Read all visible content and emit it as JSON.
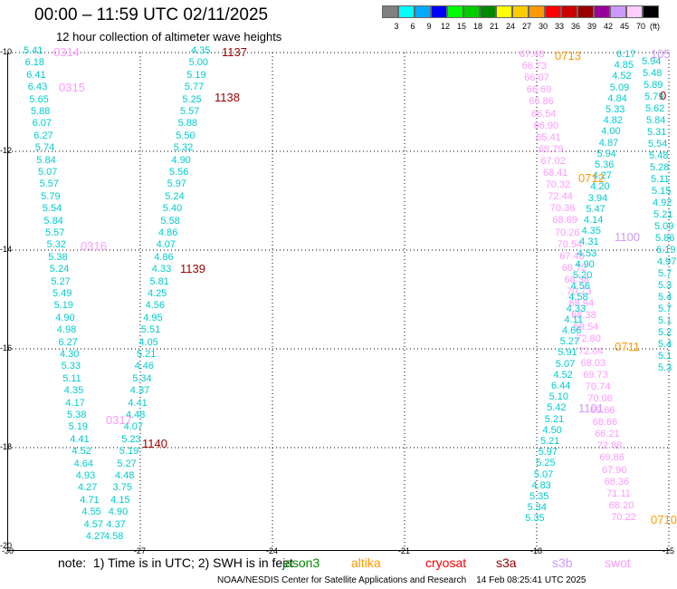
{
  "header": {
    "title": "00:00 – 11:59 UTC 02/11/2025",
    "subtitle": "12 hour collection of altimeter wave heights"
  },
  "legend": {
    "unit": "(ft)",
    "bins": [
      {
        "label": "3",
        "color": "#808080"
      },
      {
        "label": "6",
        "color": "#00ffff"
      },
      {
        "label": "9",
        "color": "#00aaff"
      },
      {
        "label": "12",
        "color": "#0000ff"
      },
      {
        "label": "15",
        "color": "#00ff00"
      },
      {
        "label": "18",
        "color": "#00cc00"
      },
      {
        "label": "21",
        "color": "#008800"
      },
      {
        "label": "24",
        "color": "#ffff00"
      },
      {
        "label": "27",
        "color": "#ffcc00"
      },
      {
        "label": "30",
        "color": "#ff9900"
      },
      {
        "label": "33",
        "color": "#ff0000"
      },
      {
        "label": "36",
        "color": "#cc0000"
      },
      {
        "label": "39",
        "color": "#990000"
      },
      {
        "label": "42",
        "color": "#990099"
      },
      {
        "label": "45",
        "color": "#cc99ff"
      },
      {
        "label": "70",
        "color": "#ffccff"
      },
      {
        "label": "",
        "color": "#000000"
      }
    ]
  },
  "axes": {
    "lon_labels": [
      "-30",
      "-27",
      "-24",
      "-21",
      "-18",
      "-15"
    ],
    "lat_labels": [
      "-10",
      "-12",
      "-14",
      "-16",
      "-18",
      "-20"
    ]
  },
  "note": {
    "text": "note:  1) Time is in UTC; 2) SWH is in feet",
    "satellites": [
      {
        "name": "jason3",
        "color": "#008800"
      },
      {
        "name": "altika",
        "color": "#ff9900"
      },
      {
        "name": "cryosat",
        "color": "#ff0000"
      },
      {
        "name": "s3a",
        "color": "#990000"
      },
      {
        "name": "s3b",
        "color": "#cc99ff"
      },
      {
        "name": "swot",
        "color": "#ff99ff"
      }
    ]
  },
  "footer": {
    "text": "NOAA/NESDIS Center for Satellite Applications and Research    14 Feb 08:25:41 UTC 2025"
  },
  "map": {
    "track_a_values": [
      "5.41",
      "6.18",
      "6.41",
      "6.43",
      "5.65",
      "5.88",
      "6.07",
      "6.27",
      "5.74",
      "5.84",
      "5.07",
      "5.57",
      "5.79",
      "5.54",
      "5.84",
      "5.57",
      "5.32",
      "5.38",
      "5.24",
      "5.27",
      "5.49",
      "5.19",
      "4.90",
      "4.98",
      "6.27",
      "4.30",
      "5.33",
      "5.11",
      "4.35",
      "4.17",
      "5.38",
      "5.19",
      "4.41",
      "4.52",
      "4.64",
      "4.93",
      "4.27",
      "4.71",
      "4.55",
      "4.57",
      "4.27"
    ],
    "track_b_values": [
      "4.35",
      "5.00",
      "5.19",
      "5.77",
      "5.25",
      "5.57",
      "5.88",
      "5.50",
      "5.32",
      "4.90",
      "5.56",
      "5.97",
      "5.24",
      "5.40",
      "5.58",
      "4.86",
      "4.07",
      "4.86",
      "4.33",
      "5.81",
      "4.25",
      "4.56",
      "4.95",
      "5.51",
      "4.05",
      "5.21",
      "4.46",
      "5.34",
      "4.37",
      "4.41",
      "4.48",
      "4.07",
      "5.23",
      "5.19",
      "5.27",
      "4.48",
      "3.75",
      "4.15",
      "4.90",
      "4.37",
      "4.58"
    ],
    "track_c_values": [
      "67.48",
      "66.73",
      "66.07",
      "66.69",
      "66.86",
      "66.54",
      "66.90",
      "65.41",
      "69.79",
      "67.02",
      "68.41",
      "70.32",
      "72.44",
      "70.36",
      "68.69",
      "70.26",
      "70.54",
      "67.48",
      "68.72",
      "68.38",
      "70.73",
      "68.94",
      "68.38",
      "69.54",
      "72.80",
      "72.04",
      "68.03",
      "69.73",
      "70.74",
      "70.06",
      "69.66",
      "68.66",
      "66.21",
      "72.88",
      "69.86",
      "67.90",
      "68.36",
      "71.11",
      "68.20",
      "70.22"
    ],
    "track_d_values": [
      "6.17",
      "4.85",
      "4.52",
      "5.09",
      "4.84",
      "5.33",
      "4.82",
      "4.00",
      "4.87",
      "5.94",
      "5.36",
      "4.27",
      "4.20",
      "3.94",
      "5.47",
      "4.14",
      "4.35",
      "4.31",
      "4.53",
      "4.90",
      "5.20",
      "4.56",
      "4.58",
      "4.33",
      "4.11",
      "4.66",
      "5.27",
      "5.91",
      "5.07",
      "4.52",
      "6.44",
      "5.10",
      "5.42",
      "5.21",
      "4.50",
      "5.21",
      "5.97",
      "5.25",
      "5.07",
      "4.83",
      "5.35",
      "5.34",
      "5.35"
    ],
    "track_e_values": [
      "5.94",
      "5.48",
      "5.89",
      "5.79",
      "5.62",
      "5.84",
      "5.31",
      "5.54",
      "5.48",
      "5.28",
      "5.11",
      "5.15",
      "4.92",
      "5.21",
      "5.09",
      "5.86",
      "6.19",
      "4.97",
      "5.7",
      "5.3",
      "5.4",
      "5.7",
      "5.1",
      "5.2",
      "5.4",
      "5.1",
      "5.3"
    ],
    "time_labels": [
      {
        "text": "0314",
        "color": "#ff99ff"
      },
      {
        "text": "0315",
        "color": "#ff99ff"
      },
      {
        "text": "0316",
        "color": "#ff99ff"
      },
      {
        "text": "0317",
        "color": "#ff99ff"
      },
      {
        "text": "1137",
        "color": "#990000"
      },
      {
        "text": "1138",
        "color": "#990000"
      },
      {
        "text": "1139",
        "color": "#990000"
      },
      {
        "text": "1140",
        "color": "#990000"
      },
      {
        "text": "0713",
        "color": "#ff9900"
      },
      {
        "text": "0712",
        "color": "#ff9900"
      },
      {
        "text": "0711",
        "color": "#ff9900"
      },
      {
        "text": "0710",
        "color": "#ff9900"
      },
      {
        "text": "1100",
        "color": "#cc99ff"
      },
      {
        "text": "1101",
        "color": "#cc99ff"
      },
      {
        "text": "105",
        "color": "#cc99ff"
      },
      {
        "text": "0",
        "color": "#990000"
      }
    ]
  }
}
